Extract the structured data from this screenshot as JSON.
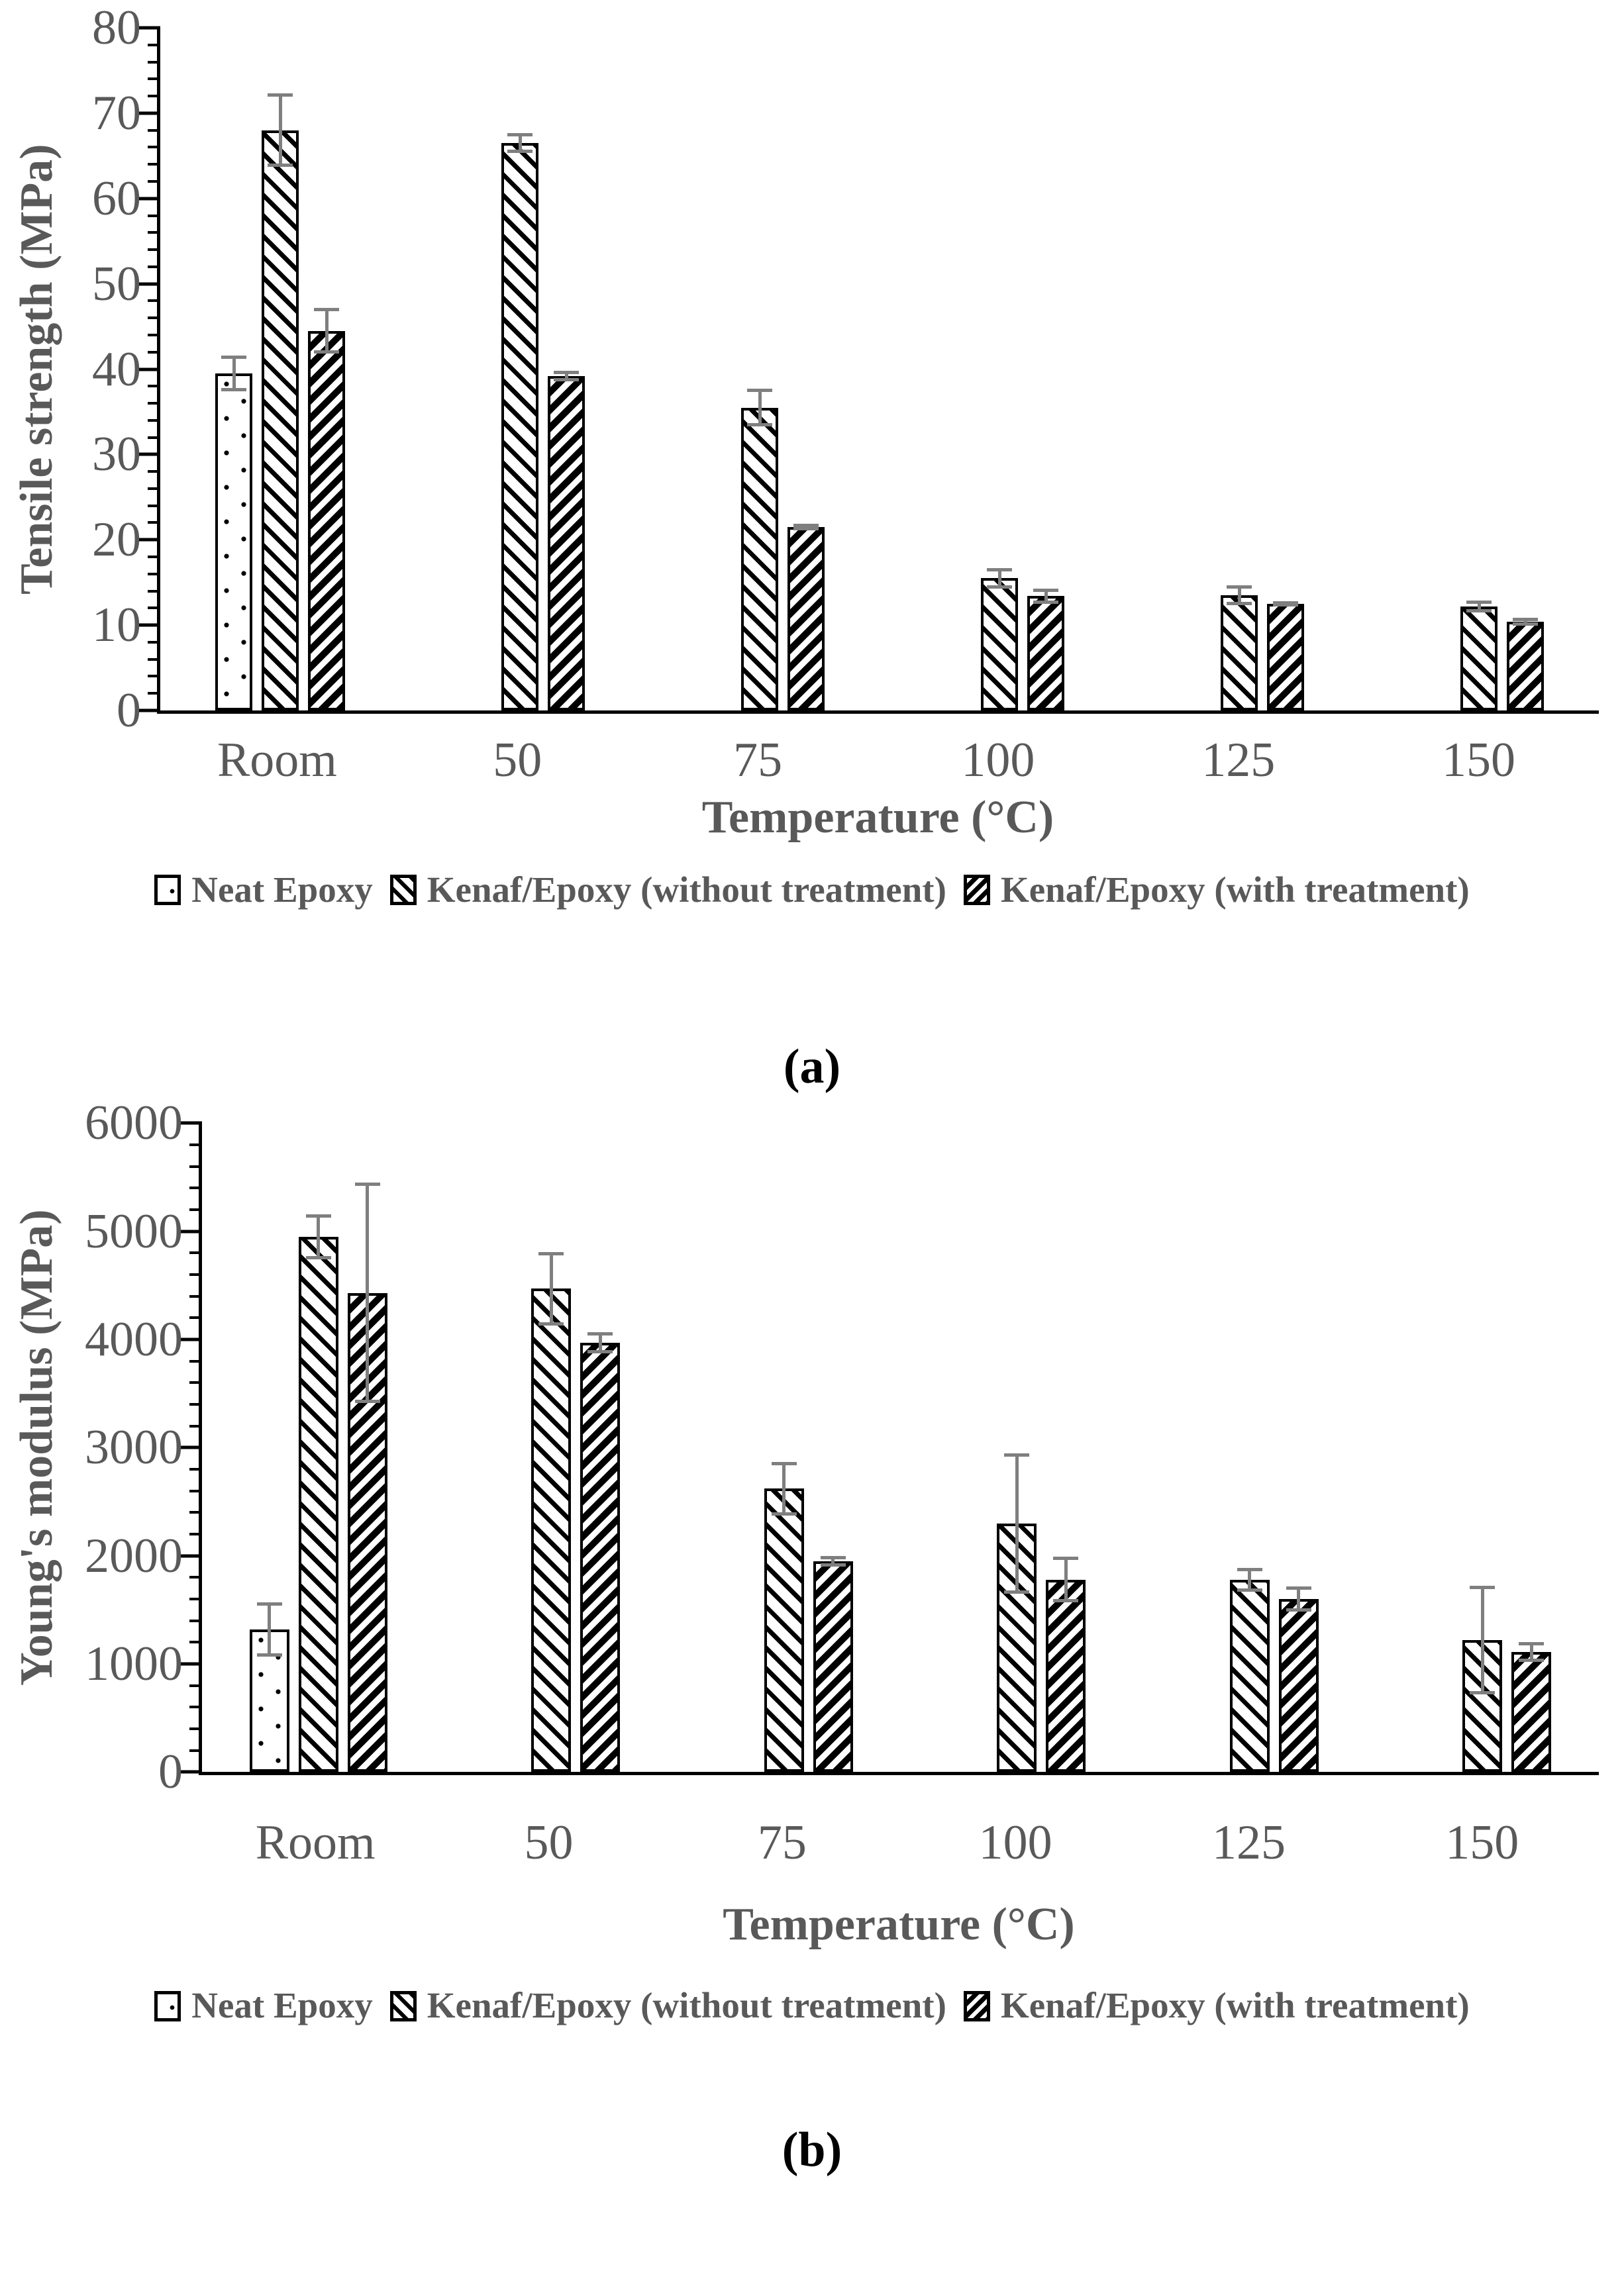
{
  "colors": {
    "text": "#595959",
    "axis": "#000000",
    "bar_fill": "#ffffff",
    "bar_border": "#000000",
    "error_bar": "#7f7f7f"
  },
  "chart_data": [
    {
      "type": "bar",
      "panel_label": "(a)",
      "title": "",
      "xlabel": "Temperature (°C)",
      "ylabel": "Tensile strength (MPa)",
      "categories": [
        "Room",
        "50",
        "75",
        "100",
        "125",
        "150"
      ],
      "ylim": [
        0,
        80
      ],
      "ytick_step": 10,
      "yminor_step": 2,
      "ytick_labels": [
        "0",
        "10",
        "20",
        "30",
        "40",
        "50",
        "60",
        "70",
        "80"
      ],
      "grid": false,
      "legend_position": "bottom",
      "series": [
        {
          "name": "Neat Epoxy",
          "pattern": "dots",
          "values": [
            39.5,
            null,
            null,
            null,
            null,
            null
          ],
          "errors": [
            2.1,
            null,
            null,
            null,
            null,
            null
          ]
        },
        {
          "name": "Kenaf/Epoxy (without treatment)",
          "pattern": "diag-up",
          "values": [
            68,
            66.5,
            35.5,
            15.5,
            13.5,
            12.2
          ],
          "errors": [
            4.3,
            1.2,
            2.2,
            1.2,
            1.2,
            0.7
          ]
        },
        {
          "name": "Kenaf/Epoxy (with treatment)",
          "pattern": "diag-down",
          "values": [
            44.5,
            39.2,
            21.5,
            13.4,
            12.5,
            10.4
          ],
          "errors": [
            2.7,
            0.6,
            0.4,
            0.9,
            0.3,
            0.5
          ]
        }
      ]
    },
    {
      "type": "bar",
      "panel_label": "(b)",
      "title": "",
      "xlabel": "Temperature (°C)",
      "ylabel": "Young's modulus (MPa)",
      "categories": [
        "Room",
        "50",
        "75",
        "100",
        "125",
        "150"
      ],
      "ylim": [
        0,
        6000
      ],
      "ytick_step": 1000,
      "yminor_step": 200,
      "ytick_labels": [
        "0",
        "1000",
        "2000",
        "3000",
        "4000",
        "5000",
        "6000"
      ],
      "grid": false,
      "legend_position": "bottom",
      "series": [
        {
          "name": "Neat Epoxy",
          "pattern": "dots",
          "values": [
            1320,
            null,
            null,
            null,
            null,
            null
          ],
          "errors": [
            250,
            null,
            null,
            null,
            null,
            null
          ]
        },
        {
          "name": "Kenaf/Epoxy (without treatment)",
          "pattern": "diag-up",
          "values": [
            4950,
            4470,
            2620,
            2300,
            1780,
            1220
          ],
          "errors": [
            210,
            340,
            250,
            650,
            110,
            500
          ]
        },
        {
          "name": "Kenaf/Epoxy (with treatment)",
          "pattern": "diag-down",
          "values": [
            4430,
            3970,
            1950,
            1780,
            1600,
            1110
          ],
          "errors": [
            1020,
            100,
            50,
            210,
            115,
            90
          ]
        }
      ]
    }
  ]
}
